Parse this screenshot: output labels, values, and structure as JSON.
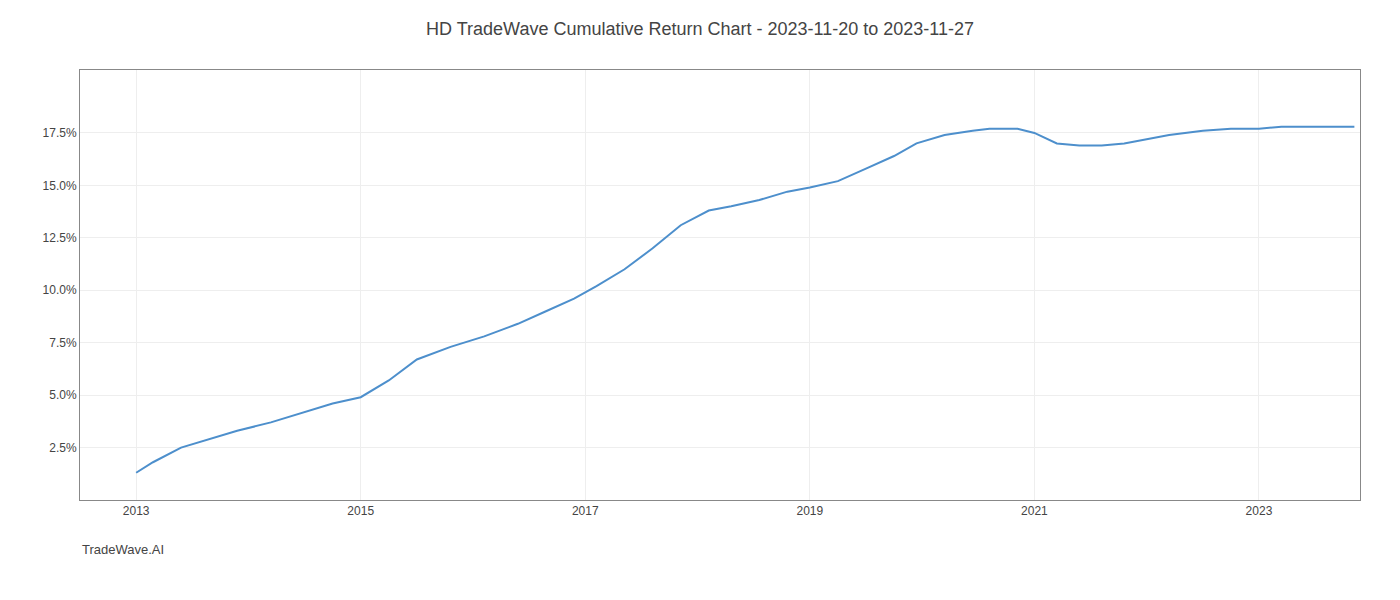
{
  "chart_data": {
    "type": "line",
    "title": "HD TradeWave Cumulative Return Chart - 2023-11-20 to 2023-11-27",
    "annotations": [
      "TradeWave.AI"
    ],
    "x": [
      2013.0,
      2013.15,
      2013.4,
      2013.7,
      2013.9,
      2014.2,
      2014.5,
      2014.75,
      2015.0,
      2015.25,
      2015.5,
      2015.8,
      2016.1,
      2016.4,
      2016.65,
      2016.9,
      2017.1,
      2017.35,
      2017.6,
      2017.85,
      2018.1,
      2018.3,
      2018.55,
      2018.8,
      2019.0,
      2019.25,
      2019.5,
      2019.75,
      2019.95,
      2020.2,
      2020.45,
      2020.6,
      2020.75,
      2020.85,
      2021.0,
      2021.2,
      2021.4,
      2021.6,
      2021.8,
      2022.0,
      2022.2,
      2022.5,
      2022.75,
      2023.0,
      2023.2,
      2023.5,
      2023.85
    ],
    "values": [
      0.013,
      0.018,
      0.025,
      0.03,
      0.033,
      0.037,
      0.042,
      0.046,
      0.049,
      0.057,
      0.067,
      0.073,
      0.078,
      0.084,
      0.09,
      0.096,
      0.102,
      0.11,
      0.12,
      0.131,
      0.138,
      0.14,
      0.143,
      0.147,
      0.149,
      0.152,
      0.158,
      0.164,
      0.17,
      0.174,
      0.176,
      0.177,
      0.177,
      0.177,
      0.175,
      0.17,
      0.169,
      0.169,
      0.17,
      0.172,
      0.174,
      0.176,
      0.177,
      0.177,
      0.178,
      0.178,
      0.178
    ],
    "color": "#4d8fcc",
    "xlim": [
      2012.5,
      2023.9
    ],
    "xticks": [
      2013,
      2015,
      2017,
      2019,
      2021,
      2023
    ],
    "ylim": [
      0.0,
      0.205
    ],
    "yticks": [
      {
        "value": 0.025,
        "label": "2.5%"
      },
      {
        "value": 0.05,
        "label": "5.0%"
      },
      {
        "value": 0.075,
        "label": "7.5%"
      },
      {
        "value": 0.1,
        "label": "10.0%"
      },
      {
        "value": 0.125,
        "label": "12.5%"
      },
      {
        "value": 0.15,
        "label": "15.0%"
      },
      {
        "value": 0.175,
        "label": "17.5%"
      }
    ],
    "grid": true
  }
}
